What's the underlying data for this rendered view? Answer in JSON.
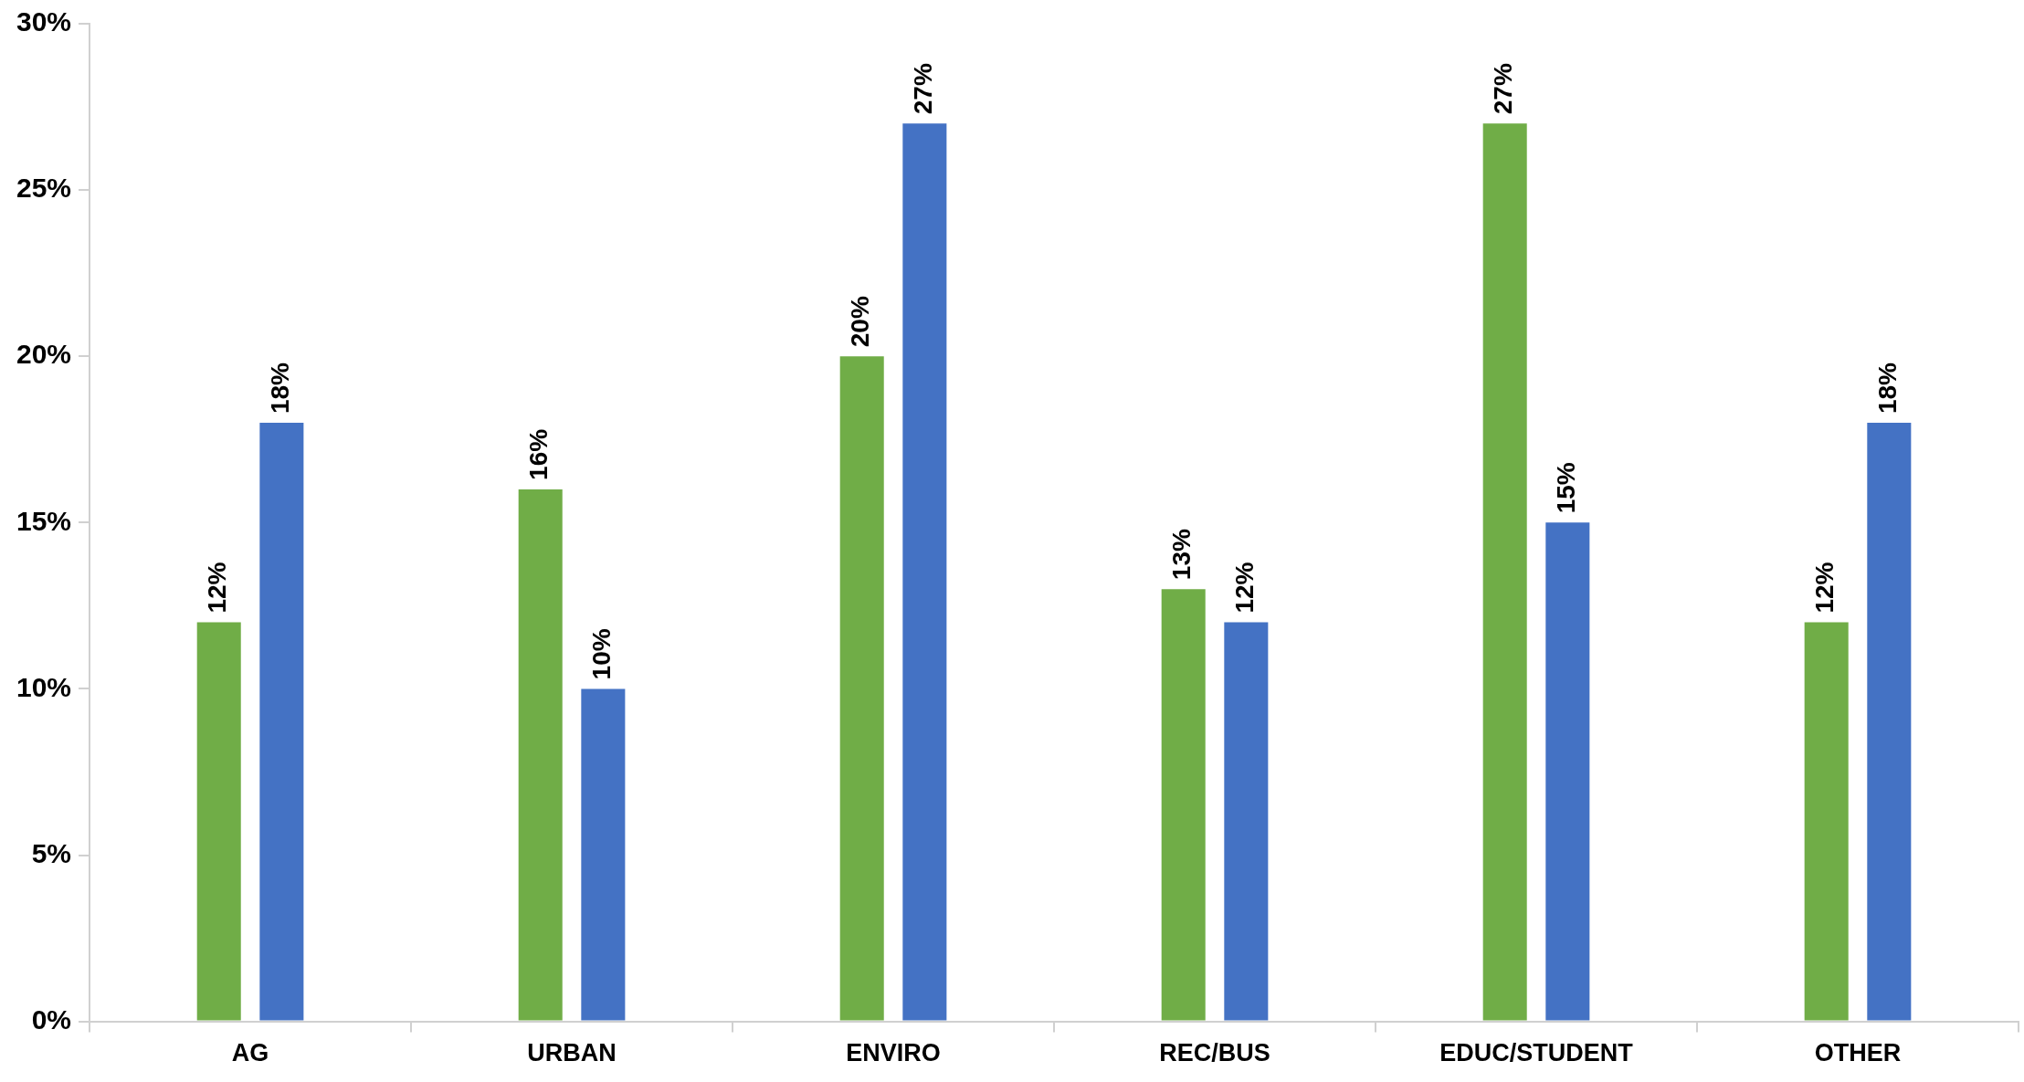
{
  "chart_data": {
    "type": "bar",
    "categories": [
      "AG",
      "URBAN",
      "ENVIRO",
      "REC/BUS",
      "EDUC/STUDENT",
      "OTHER"
    ],
    "series": [
      {
        "color": "#70ad47",
        "values": [
          12,
          16,
          20,
          13,
          27,
          12
        ],
        "value_labels": [
          "12%",
          "16%",
          "20%",
          "13%",
          "27%",
          "12%"
        ]
      },
      {
        "color": "#4472c4",
        "values": [
          18,
          10,
          27,
          12,
          15,
          18
        ],
        "value_labels": [
          "18%",
          "10%",
          "27%",
          "12%",
          "15%",
          "18%"
        ]
      }
    ],
    "ylim": [
      0,
      30
    ],
    "yticks": [
      {
        "value": 0,
        "label": "0%"
      },
      {
        "value": 5,
        "label": "5%"
      },
      {
        "value": 10,
        "label": "10%"
      },
      {
        "value": 15,
        "label": "15%"
      },
      {
        "value": 20,
        "label": "20%"
      },
      {
        "value": 25,
        "label": "25%"
      },
      {
        "value": 30,
        "label": "30%"
      }
    ],
    "grid": false,
    "legend": false
  }
}
